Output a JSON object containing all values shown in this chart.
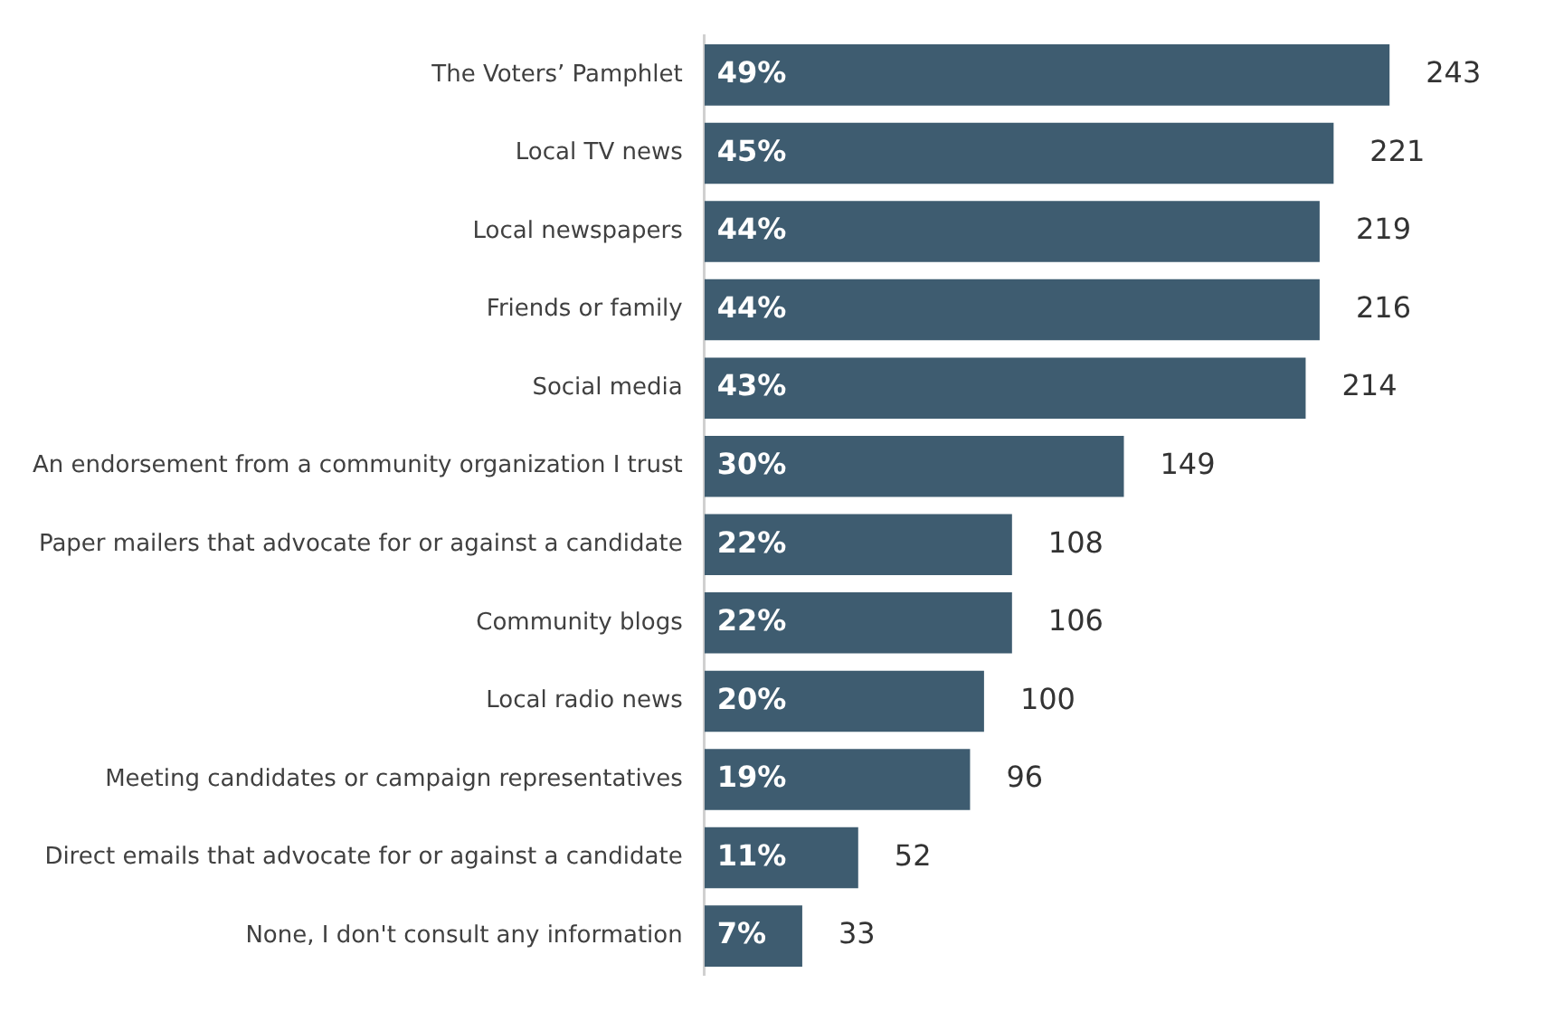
{
  "chart_data": {
    "type": "bar",
    "orientation": "horizontal",
    "categories": [
      "The Voters’ Pamphlet",
      "Local TV news",
      "Local newspapers",
      "Friends or family",
      "Social media",
      "An endorsement from a community organization I trust",
      "Paper mailers that advocate for or against a candidate",
      "Community blogs",
      "Local radio news",
      "Meeting candidates or campaign representatives",
      "Direct emails that advocate for or against a candidate",
      "None, I don't consult any information"
    ],
    "values": [
      49,
      45,
      44,
      44,
      43,
      30,
      22,
      22,
      20,
      19,
      11,
      7
    ],
    "value_labels": [
      "49%",
      "45%",
      "44%",
      "44%",
      "43%",
      "30%",
      "22%",
      "22%",
      "20%",
      "19%",
      "11%",
      "7%"
    ],
    "annotations": [
      {
        "text": "243",
        "x": 49,
        "y": "The Voters’ Pamphlet"
      },
      {
        "text": "221",
        "x": 45,
        "y": "Local TV news"
      },
      {
        "text": "219",
        "x": 44,
        "y": "Local newspapers"
      },
      {
        "text": "216",
        "x": 44,
        "y": "Friends or family"
      },
      {
        "text": "214",
        "x": 43,
        "y": "Social media"
      },
      {
        "text": "149",
        "x": 30,
        "y": "An endorsement from a community organization I trust"
      },
      {
        "text": "108",
        "x": 22,
        "y": "Paper mailers that advocate for or against a candidate"
      },
      {
        "text": "106",
        "x": 22,
        "y": "Community blogs"
      },
      {
        "text": "100",
        "x": 20,
        "y": "Local radio news"
      },
      {
        "text": "96",
        "x": 19,
        "y": "Meeting candidates or campaign representatives"
      },
      {
        "text": "52",
        "x": 11,
        "y": "Direct emails that advocate for or against a candidate"
      },
      {
        "text": "33",
        "x": 7,
        "y": "None, I don't consult any information"
      }
    ],
    "color": "#3e5c70"
  }
}
